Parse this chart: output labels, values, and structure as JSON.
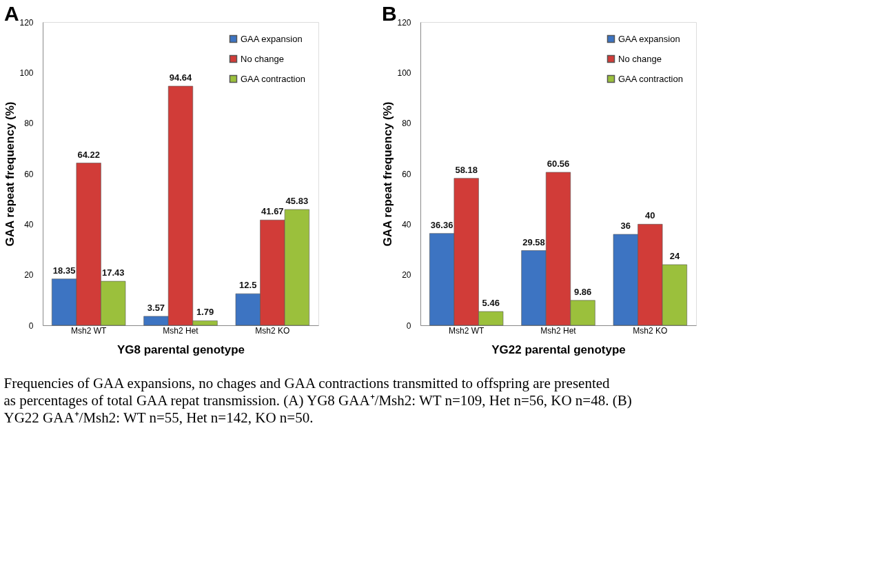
{
  "chart_data": [
    {
      "type": "bar",
      "title": "A",
      "xlabel": "YG8 parental genotype",
      "ylabel": "GAA repeat frequency (%)",
      "categories": [
        "Msh2 WT",
        "Msh2 Het",
        "Msh2 KO"
      ],
      "series": [
        {
          "name": "GAA expansion",
          "color": "#3d74c2",
          "values": [
            18.35,
            3.57,
            12.5
          ]
        },
        {
          "name": "No change",
          "color": "#d13c38",
          "values": [
            64.22,
            94.64,
            41.67
          ]
        },
        {
          "name": "GAA contraction",
          "color": "#9bc03c",
          "values": [
            17.43,
            1.79,
            45.83
          ]
        }
      ],
      "ylim": [
        0,
        120
      ],
      "yticks": [
        0,
        20,
        40,
        60,
        80,
        100,
        120
      ],
      "data_labels": true,
      "legend": "top right",
      "grid": false
    },
    {
      "type": "bar",
      "title": "B",
      "xlabel": "YG22 parental genotype",
      "ylabel": "GAA repeat frequency (%)",
      "categories": [
        "Msh2 WT",
        "Msh2 Het",
        "Msh2 KO"
      ],
      "series": [
        {
          "name": "GAA expansion",
          "color": "#3d74c2",
          "values": [
            36.36,
            29.58,
            36
          ]
        },
        {
          "name": "No change",
          "color": "#d13c38",
          "values": [
            58.18,
            60.56,
            40
          ]
        },
        {
          "name": "GAA contraction",
          "color": "#9bc03c",
          "values": [
            5.46,
            9.86,
            24
          ]
        }
      ],
      "ylim": [
        0,
        120
      ],
      "yticks": [
        0,
        20,
        40,
        60,
        80,
        100,
        120
      ],
      "data_labels": true,
      "legend": "top right",
      "grid": false,
      "annotations": [
        "Frequencies of GAA expansions, no chages and GAA contractions transmitted to offspring are presented as percentages of total GAA repat transmission. (A) YG8 GAA⁺/Msh2: WT n=109, Het n=56, KO n=48. (B) YG22 GAA⁺/Msh2: WT n=55, Het n=142, KO n=50."
      ]
    }
  ]
}
